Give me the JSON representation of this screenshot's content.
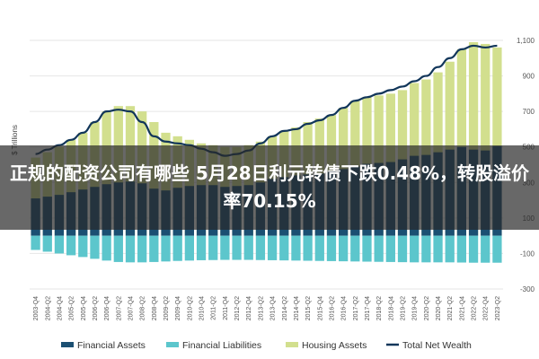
{
  "banner": {
    "title": "正规的配资公司有哪些 5月28日利元转债下跌0.48%，转股溢价率70.15%"
  },
  "chart_data": {
    "type": "bar",
    "ylabel": "$ Trillions",
    "ylim": [
      -300,
      1200
    ],
    "yticks": [
      1100,
      900,
      700,
      500,
      300,
      100,
      -100,
      -300
    ],
    "ytick_labels": [
      "1,100",
      "900",
      "700",
      "500",
      "300",
      "100",
      "-100",
      "-300"
    ],
    "grid": true,
    "legend_position": "bottom",
    "colors": {
      "financial_assets": "#1b4f72",
      "financial_liabilities": "#5cc6cc",
      "housing_assets": "#d2df8e",
      "total_net_wealth": "#12365a"
    },
    "x": [
      "2003-Q4",
      "2004-Q2",
      "2004-Q4",
      "2005-Q2",
      "2005-Q4",
      "2006-Q2",
      "2006-Q4",
      "2007-Q2",
      "2007-Q4",
      "2008-Q2",
      "2008-Q4",
      "2009-Q2",
      "2009-Q4",
      "2010-Q2",
      "2010-Q4",
      "2011-Q2",
      "2011-Q4",
      "2012-Q2",
      "2012-Q4",
      "2013-Q2",
      "2013-Q4",
      "2014-Q2",
      "2014-Q4",
      "2015-Q2",
      "2015-Q4",
      "2016-Q2",
      "2016-Q4",
      "2017-Q2",
      "2017-Q4",
      "2018-Q2",
      "2018-Q4",
      "2019-Q2",
      "2019-Q4",
      "2020-Q2",
      "2020-Q4",
      "2021-Q2",
      "2021-Q4",
      "2022-Q2",
      "2022-Q4",
      "2023-Q2"
    ],
    "series": [
      {
        "name": "Financial Assets",
        "type": "bar",
        "key": "financial_assets",
        "values": [
          210,
          220,
          230,
          245,
          260,
          275,
          290,
          300,
          305,
          295,
          265,
          255,
          270,
          280,
          285,
          285,
          275,
          280,
          285,
          300,
          320,
          330,
          340,
          345,
          350,
          360,
          375,
          390,
          405,
          410,
          415,
          430,
          450,
          455,
          470,
          485,
          500,
          485,
          480,
          505
        ]
      },
      {
        "name": "Financial Liabilities",
        "type": "bar",
        "key": "financial_liabilities",
        "values": [
          -80,
          -90,
          -100,
          -110,
          -120,
          -130,
          -140,
          -148,
          -150,
          -150,
          -148,
          -145,
          -142,
          -140,
          -138,
          -137,
          -136,
          -136,
          -136,
          -137,
          -138,
          -139,
          -140,
          -141,
          -142,
          -143,
          -144,
          -145,
          -146,
          -147,
          -148,
          -149,
          -150,
          -150,
          -150,
          -150,
          -151,
          -152,
          -152,
          -152
        ]
      },
      {
        "name": "Housing Assets",
        "type": "bar",
        "key": "housing_assets",
        "values": [
          440,
          470,
          500,
          540,
          580,
          640,
          700,
          730,
          730,
          700,
          640,
          580,
          560,
          540,
          520,
          510,
          500,
          500,
          510,
          530,
          560,
          590,
          610,
          640,
          660,
          680,
          720,
          760,
          780,
          790,
          800,
          820,
          860,
          880,
          920,
          980,
          1050,
          1090,
          1080,
          1060
        ]
      },
      {
        "name": "Total Net Wealth",
        "type": "line",
        "key": "total_net_wealth",
        "values": [
          460,
          485,
          510,
          540,
          580,
          640,
          700,
          710,
          700,
          640,
          560,
          530,
          520,
          510,
          490,
          470,
          450,
          460,
          480,
          520,
          560,
          590,
          600,
          630,
          650,
          680,
          720,
          760,
          780,
          800,
          820,
          840,
          870,
          900,
          950,
          1000,
          1050,
          1070,
          1060,
          1070
        ]
      }
    ]
  }
}
